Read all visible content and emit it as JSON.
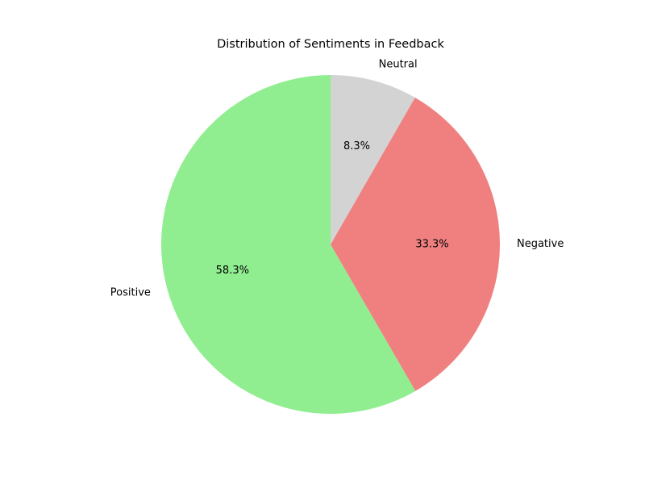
{
  "chart_data": {
    "type": "pie",
    "title": "Distribution of Sentiments in Feedback",
    "slices": [
      {
        "label": "Positive",
        "value": 58.3,
        "pct_label": "58.3%",
        "color": "#90ee90"
      },
      {
        "label": "Negative",
        "value": 33.3,
        "pct_label": "33.3%",
        "color": "#f08080"
      },
      {
        "label": "Neutral",
        "value": 8.3,
        "pct_label": "8.3%",
        "color": "#d3d3d3"
      }
    ],
    "start_angle_deg": 90,
    "direction": "counterclockwise",
    "legend": "none"
  }
}
